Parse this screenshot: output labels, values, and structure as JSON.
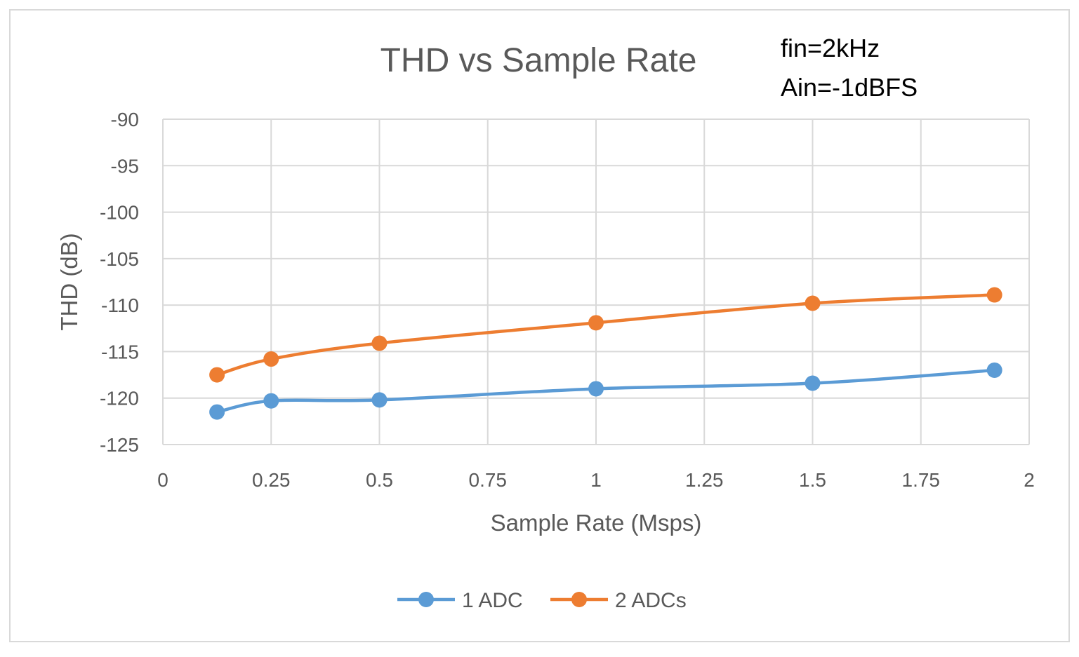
{
  "chart_data": {
    "type": "line",
    "title": "THD vs Sample Rate",
    "annotations": [
      "fin=2kHz",
      "Ain=-1dBFS"
    ],
    "xlabel": "Sample Rate (Msps)",
    "ylabel": "THD (dB)",
    "xlim": [
      0,
      2
    ],
    "ylim": [
      -125,
      -90
    ],
    "xticks": [
      0,
      0.25,
      0.5,
      0.75,
      1,
      1.25,
      1.5,
      1.75,
      2
    ],
    "xtick_labels": [
      "0",
      "0.25",
      "0.5",
      "0.75",
      "1",
      "1.25",
      "1.5",
      "1.75",
      "2"
    ],
    "yticks": [
      -90,
      -95,
      -100,
      -105,
      -110,
      -115,
      -120,
      -125
    ],
    "ytick_labels": [
      "-90",
      "-95",
      "-100",
      "-105",
      "-110",
      "-115",
      "-120",
      "-125"
    ],
    "grid": true,
    "smooth": true,
    "legend_position": "bottom",
    "series": [
      {
        "name": "1 ADC",
        "color": "#5b9bd5",
        "x": [
          0.125,
          0.25,
          0.5,
          1,
          1.5,
          1.92
        ],
        "y": [
          -121.5,
          -120.3,
          -120.2,
          -119.0,
          -118.4,
          -117.0
        ]
      },
      {
        "name": "2 ADCs",
        "color": "#ed7d31",
        "x": [
          0.125,
          0.25,
          0.5,
          1,
          1.5,
          1.92
        ],
        "y": [
          -117.5,
          -115.8,
          -114.1,
          -111.9,
          -109.8,
          -108.9
        ]
      }
    ]
  }
}
